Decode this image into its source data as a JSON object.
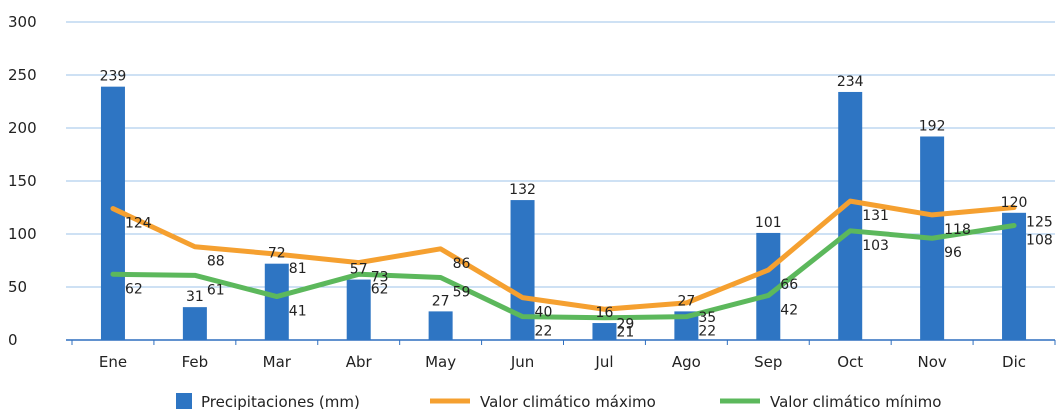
{
  "chart_data": {
    "type": "bar",
    "categories": [
      "Ene",
      "Feb",
      "Mar",
      "Abr",
      "May",
      "Jun",
      "Jul",
      "Ago",
      "Sep",
      "Oct",
      "Nov",
      "Dic"
    ],
    "ylim": [
      0,
      300
    ],
    "yticks": [
      0,
      50,
      100,
      150,
      200,
      250,
      300
    ],
    "grid": true,
    "legend_position": "bottom",
    "series": [
      {
        "name": "Precipitaciones (mm)",
        "type": "bar",
        "color": "#2e75c3",
        "values": [
          239,
          31,
          72,
          57,
          27,
          132,
          16,
          27,
          101,
          234,
          192,
          120
        ]
      },
      {
        "name": "Valor climático máximo",
        "type": "line",
        "color": "#f5a030",
        "values": [
          124,
          88,
          81,
          73,
          86,
          40,
          29,
          35,
          66,
          131,
          118,
          125
        ]
      },
      {
        "name": "Valor climático mínimo",
        "type": "line",
        "color": "#5cb85c",
        "values": [
          62,
          61,
          41,
          62,
          59,
          22,
          21,
          22,
          42,
          103,
          96,
          108
        ]
      }
    ]
  }
}
